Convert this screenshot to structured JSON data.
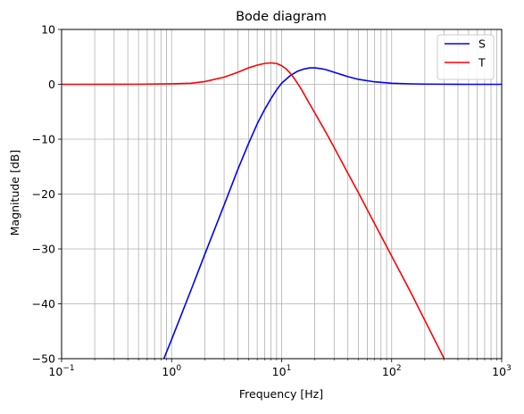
{
  "chart_data": {
    "type": "line",
    "title": "Bode diagram",
    "xlabel": "Frequency [Hz]",
    "ylabel": "Magnitude [dB]",
    "xscale": "log",
    "xlim": [
      0.1,
      1000
    ],
    "ylim": [
      -50,
      10
    ],
    "grid": true,
    "grid_minor_x": true,
    "legend_position": "top-right",
    "x_ticks": [
      {
        "value": 0.1,
        "base": "10",
        "exp": "−1"
      },
      {
        "value": 1,
        "base": "10",
        "exp": "0"
      },
      {
        "value": 10,
        "base": "10",
        "exp": "1"
      },
      {
        "value": 100,
        "base": "10",
        "exp": "2"
      },
      {
        "value": 1000,
        "base": "10",
        "exp": "3"
      }
    ],
    "y_ticks": [
      {
        "value": 10,
        "label": "10"
      },
      {
        "value": 0,
        "label": "0"
      },
      {
        "value": -10,
        "label": "−10"
      },
      {
        "value": -20,
        "label": "−20"
      },
      {
        "value": -30,
        "label": "−30"
      },
      {
        "value": -40,
        "label": "−40"
      },
      {
        "value": -50,
        "label": "−50"
      }
    ],
    "series": [
      {
        "name": "S",
        "color": "#0000ff",
        "x": [
          0.85,
          1.0,
          1.5,
          2.0,
          3.0,
          4.0,
          5.0,
          6.0,
          7.0,
          8.0,
          9.0,
          10.0,
          12.0,
          14.0,
          16.0,
          18.0,
          20.0,
          22.0,
          25.0,
          30.0,
          40.0,
          50.0,
          70.0,
          100.0,
          150.0,
          200.0,
          300.0,
          500.0,
          1000.0
        ],
        "y": [
          -50.0,
          -46.5,
          -37.5,
          -31.0,
          -22.0,
          -15.5,
          -10.8,
          -7.2,
          -4.6,
          -2.6,
          -1.0,
          0.2,
          1.6,
          2.4,
          2.8,
          3.0,
          3.0,
          2.9,
          2.7,
          2.2,
          1.4,
          0.9,
          0.45,
          0.2,
          0.08,
          0.04,
          0.02,
          0.0,
          0.0
        ]
      },
      {
        "name": "T",
        "color": "#ff0000",
        "x": [
          0.1,
          0.5,
          1.0,
          1.5,
          2.0,
          3.0,
          4.0,
          5.0,
          6.0,
          7.0,
          8.0,
          9.0,
          10.0,
          11.0,
          12.0,
          13.0,
          15.0,
          18.0,
          20.0,
          25.0,
          30.0,
          40.0,
          50.0,
          70.0,
          100.0,
          150.0,
          200.0,
          300.0,
          420.0
        ],
        "y": [
          0.0,
          0.02,
          0.1,
          0.2,
          0.5,
          1.3,
          2.2,
          3.0,
          3.5,
          3.8,
          3.9,
          3.8,
          3.4,
          2.8,
          2.0,
          1.1,
          -0.8,
          -3.6,
          -5.2,
          -8.6,
          -11.5,
          -16.2,
          -19.8,
          -25.4,
          -31.3,
          -38.0,
          -43.0,
          -50.0,
          -55.5
        ]
      }
    ]
  }
}
